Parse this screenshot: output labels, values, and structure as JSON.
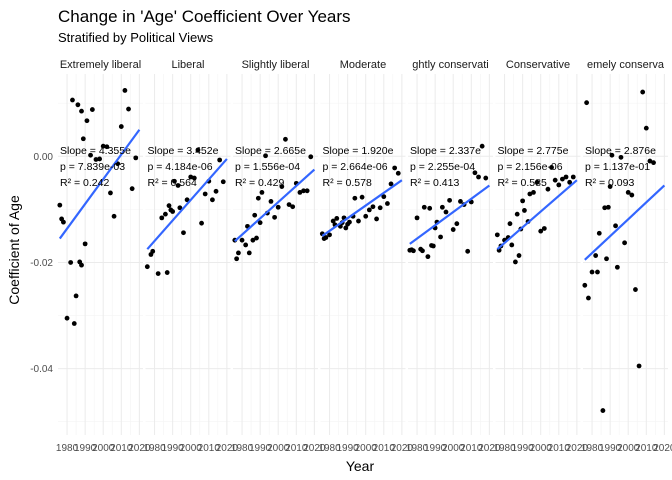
{
  "chart_data": {
    "type": "scatter",
    "title": "Change in 'Age' Coefficient Over Years",
    "subtitle": "Stratified by Political Views",
    "xlabel": "Year",
    "ylabel": "Coefficient of Age",
    "xlim": [
      1975,
      2022
    ],
    "ylim": [
      -0.0525,
      0.0155
    ],
    "x_ticks": [
      1980,
      1990,
      2000,
      2010,
      2020
    ],
    "x_tick_labels": [
      "1980",
      "1990",
      "2000",
      "2010",
      "2020"
    ],
    "y_ticks": [
      0.0,
      -0.02,
      -0.04
    ],
    "y_tick_labels": [
      "0.00",
      "-0.02",
      "-0.04"
    ],
    "grid": true,
    "legend": "none",
    "point_color": "#000000",
    "line_color": "#3366ff",
    "facets": [
      {
        "label": "Extremely liberal",
        "annotation": [
          "Slope = 4.355e",
          "p = 7.839e-03",
          "R² = 0.242"
        ],
        "fit": {
          "x": [
            1976,
            2020
          ],
          "y": [
            -0.0155,
            0.005
          ]
        },
        "points": [
          {
            "x": 1976,
            "y": -0.0092
          },
          {
            "x": 1977,
            "y": -0.0118
          },
          {
            "x": 1978,
            "y": -0.0124
          },
          {
            "x": 1980,
            "y": -0.0305
          },
          {
            "x": 1982,
            "y": -0.02
          },
          {
            "x": 1983,
            "y": 0.0106
          },
          {
            "x": 1984,
            "y": -0.0315
          },
          {
            "x": 1985,
            "y": -0.0263
          },
          {
            "x": 1986,
            "y": 0.0097
          },
          {
            "x": 1987,
            "y": -0.0199
          },
          {
            "x": 1988,
            "y": -0.0205
          },
          {
            "x": 1988,
            "y": 0.0085
          },
          {
            "x": 1989,
            "y": 0.0033
          },
          {
            "x": 1990,
            "y": -0.0165
          },
          {
            "x": 1991,
            "y": 0.0067
          },
          {
            "x": 1993,
            "y": 0.0002
          },
          {
            "x": 1994,
            "y": 0.0088
          },
          {
            "x": 1996,
            "y": -0.0006
          },
          {
            "x": 1998,
            "y": -0.0005
          },
          {
            "x": 2000,
            "y": 0.0019
          },
          {
            "x": 2002,
            "y": 0.0018
          },
          {
            "x": 2004,
            "y": -0.0069
          },
          {
            "x": 2006,
            "y": -0.0113
          },
          {
            "x": 2008,
            "y": -0.0014
          },
          {
            "x": 2010,
            "y": 0.0056
          },
          {
            "x": 2012,
            "y": 0.0124
          },
          {
            "x": 2014,
            "y": 0.0089
          },
          {
            "x": 2016,
            "y": -0.0061
          },
          {
            "x": 2018,
            "y": -0.0003
          }
        ]
      },
      {
        "label": "Liberal",
        "annotation": [
          "Slope = 3.452e",
          "p = 4.184e-06",
          "R² = 0.564"
        ],
        "fit": {
          "x": [
            1976,
            2020
          ],
          "y": [
            -0.0175,
            -0.0005
          ]
        },
        "points": [
          {
            "x": 1976,
            "y": -0.0208
          },
          {
            "x": 1978,
            "y": -0.0185
          },
          {
            "x": 1979,
            "y": -0.0179
          },
          {
            "x": 1982,
            "y": -0.0221
          },
          {
            "x": 1984,
            "y": -0.0116
          },
          {
            "x": 1986,
            "y": -0.0109
          },
          {
            "x": 1987,
            "y": -0.0219
          },
          {
            "x": 1988,
            "y": -0.0093
          },
          {
            "x": 1989,
            "y": -0.0101
          },
          {
            "x": 1990,
            "y": -0.0104
          },
          {
            "x": 1991,
            "y": -0.0047
          },
          {
            "x": 1993,
            "y": -0.0055
          },
          {
            "x": 1994,
            "y": -0.0097
          },
          {
            "x": 1996,
            "y": -0.0144
          },
          {
            "x": 1998,
            "y": -0.0082
          },
          {
            "x": 2000,
            "y": -0.0039
          },
          {
            "x": 2002,
            "y": -0.0041
          },
          {
            "x": 2004,
            "y": 0.0012
          },
          {
            "x": 2006,
            "y": -0.0126
          },
          {
            "x": 2008,
            "y": -0.0071
          },
          {
            "x": 2010,
            "y": -0.0047
          },
          {
            "x": 2012,
            "y": -0.0082
          },
          {
            "x": 2014,
            "y": -0.0066
          },
          {
            "x": 2016,
            "y": -0.0007
          },
          {
            "x": 2018,
            "y": -0.0048
          }
        ]
      },
      {
        "label": "Slightly liberal",
        "annotation": [
          "Slope = 2.665e",
          "p = 1.556e-04",
          "R² = 0.429"
        ],
        "fit": {
          "x": [
            1976,
            2020
          ],
          "y": [
            -0.016,
            -0.0025
          ]
        },
        "points": [
          {
            "x": 1976,
            "y": -0.0158
          },
          {
            "x": 1977,
            "y": -0.0193
          },
          {
            "x": 1978,
            "y": -0.0182
          },
          {
            "x": 1980,
            "y": -0.0158
          },
          {
            "x": 1982,
            "y": -0.0167
          },
          {
            "x": 1983,
            "y": -0.0132
          },
          {
            "x": 1984,
            "y": -0.0182
          },
          {
            "x": 1986,
            "y": -0.0158
          },
          {
            "x": 1987,
            "y": -0.0111
          },
          {
            "x": 1988,
            "y": -0.0154
          },
          {
            "x": 1989,
            "y": -0.0079
          },
          {
            "x": 1990,
            "y": -0.0125
          },
          {
            "x": 1991,
            "y": -0.0068
          },
          {
            "x": 1993,
            "y": 0.0001
          },
          {
            "x": 1994,
            "y": -0.0107
          },
          {
            "x": 1996,
            "y": -0.0085
          },
          {
            "x": 1998,
            "y": -0.0115
          },
          {
            "x": 2000,
            "y": -0.0096
          },
          {
            "x": 2002,
            "y": -0.0057
          },
          {
            "x": 2004,
            "y": 0.0032
          },
          {
            "x": 2006,
            "y": -0.0091
          },
          {
            "x": 2008,
            "y": -0.0095
          },
          {
            "x": 2010,
            "y": -0.0051
          },
          {
            "x": 2012,
            "y": -0.0068
          },
          {
            "x": 2014,
            "y": -0.0065
          },
          {
            "x": 2016,
            "y": -0.0065
          },
          {
            "x": 2018,
            "y": -0.0001
          }
        ]
      },
      {
        "label": "Moderate",
        "annotation": [
          "Slope = 1.920e",
          "p = 2.664e-06",
          "R² = 0.578"
        ],
        "fit": {
          "x": [
            1976,
            2020
          ],
          "y": [
            -0.015,
            -0.0045
          ]
        },
        "points": [
          {
            "x": 1976,
            "y": -0.0146
          },
          {
            "x": 1977,
            "y": -0.0155
          },
          {
            "x": 1978,
            "y": -0.0153
          },
          {
            "x": 1980,
            "y": -0.0148
          },
          {
            "x": 1982,
            "y": -0.0122
          },
          {
            "x": 1983,
            "y": -0.0129
          },
          {
            "x": 1984,
            "y": -0.0117
          },
          {
            "x": 1986,
            "y": -0.0132
          },
          {
            "x": 1987,
            "y": -0.0125
          },
          {
            "x": 1988,
            "y": -0.0116
          },
          {
            "x": 1989,
            "y": -0.0135
          },
          {
            "x": 1990,
            "y": -0.0128
          },
          {
            "x": 1991,
            "y": -0.0124
          },
          {
            "x": 1993,
            "y": -0.0113
          },
          {
            "x": 1994,
            "y": -0.0079
          },
          {
            "x": 1996,
            "y": -0.0122
          },
          {
            "x": 1998,
            "y": -0.0077
          },
          {
            "x": 2000,
            "y": -0.0113
          },
          {
            "x": 2002,
            "y": -0.0101
          },
          {
            "x": 2004,
            "y": -0.0095
          },
          {
            "x": 2006,
            "y": -0.0118
          },
          {
            "x": 2008,
            "y": -0.0097
          },
          {
            "x": 2010,
            "y": -0.0076
          },
          {
            "x": 2012,
            "y": -0.0089
          },
          {
            "x": 2014,
            "y": -0.0052
          },
          {
            "x": 2016,
            "y": -0.0022
          },
          {
            "x": 2018,
            "y": -0.0032
          }
        ]
      },
      {
        "label": "Slightly conservative",
        "display_label": "ghtly conservati",
        "annotation": [
          "Slope = 2.337e",
          "p = 2.255e-04",
          "R² = 0.413"
        ],
        "fit": {
          "x": [
            1976,
            2020
          ],
          "y": [
            -0.0165,
            -0.0055
          ]
        },
        "points": [
          {
            "x": 1976,
            "y": -0.0177
          },
          {
            "x": 1977,
            "y": -0.0176
          },
          {
            "x": 1978,
            "y": -0.0178
          },
          {
            "x": 1980,
            "y": -0.0116
          },
          {
            "x": 1982,
            "y": -0.0175
          },
          {
            "x": 1983,
            "y": -0.0178
          },
          {
            "x": 1984,
            "y": -0.0096
          },
          {
            "x": 1986,
            "y": -0.0189
          },
          {
            "x": 1987,
            "y": -0.0098
          },
          {
            "x": 1988,
            "y": -0.0168
          },
          {
            "x": 1989,
            "y": -0.0169
          },
          {
            "x": 1990,
            "y": -0.0135
          },
          {
            "x": 1991,
            "y": -0.0124
          },
          {
            "x": 1993,
            "y": -0.0152
          },
          {
            "x": 1994,
            "y": -0.0096
          },
          {
            "x": 1996,
            "y": -0.0105
          },
          {
            "x": 1998,
            "y": -0.0083
          },
          {
            "x": 2000,
            "y": -0.0138
          },
          {
            "x": 2002,
            "y": -0.0127
          },
          {
            "x": 2004,
            "y": -0.0085
          },
          {
            "x": 2006,
            "y": -0.0091
          },
          {
            "x": 2008,
            "y": -0.0179
          },
          {
            "x": 2010,
            "y": -0.0086
          },
          {
            "x": 2012,
            "y": -0.0031
          },
          {
            "x": 2014,
            "y": -0.0039
          },
          {
            "x": 2016,
            "y": 0.0019
          },
          {
            "x": 2018,
            "y": -0.0041
          }
        ]
      },
      {
        "label": "Conservative",
        "annotation": [
          "Slope = 2.775e",
          "p = 2.156e-06",
          "R² = 0.585"
        ],
        "fit": {
          "x": [
            1976,
            2020
          ],
          "y": [
            -0.0175,
            -0.0045
          ]
        },
        "points": [
          {
            "x": 1976,
            "y": -0.0148
          },
          {
            "x": 1977,
            "y": -0.0177
          },
          {
            "x": 1978,
            "y": -0.0169
          },
          {
            "x": 1980,
            "y": -0.0158
          },
          {
            "x": 1982,
            "y": -0.0153
          },
          {
            "x": 1983,
            "y": -0.0127
          },
          {
            "x": 1984,
            "y": -0.0167
          },
          {
            "x": 1986,
            "y": -0.0199
          },
          {
            "x": 1987,
            "y": -0.0109
          },
          {
            "x": 1988,
            "y": -0.0187
          },
          {
            "x": 1989,
            "y": -0.0137
          },
          {
            "x": 1990,
            "y": -0.0084
          },
          {
            "x": 1991,
            "y": -0.0102
          },
          {
            "x": 1993,
            "y": -0.0123
          },
          {
            "x": 1994,
            "y": -0.0071
          },
          {
            "x": 1996,
            "y": -0.0068
          },
          {
            "x": 1998,
            "y": -0.0049
          },
          {
            "x": 2000,
            "y": -0.0141
          },
          {
            "x": 2002,
            "y": -0.0136
          },
          {
            "x": 2004,
            "y": -0.0062
          },
          {
            "x": 2006,
            "y": -0.0021
          },
          {
            "x": 2008,
            "y": -0.0045
          },
          {
            "x": 2010,
            "y": -0.0054
          },
          {
            "x": 2012,
            "y": -0.0043
          },
          {
            "x": 2014,
            "y": -0.0039
          },
          {
            "x": 2016,
            "y": -0.0049
          },
          {
            "x": 2018,
            "y": -0.0039
          }
        ]
      },
      {
        "label": "Extremely conservative",
        "display_label": "emely conserva",
        "annotation": [
          "Slope = 2.876e",
          "p = 1.137e-01",
          "R² = 0.093"
        ],
        "fit": {
          "x": [
            1976,
            2020
          ],
          "y": [
            -0.0195,
            -0.0055
          ]
        },
        "points": [
          {
            "x": 1976,
            "y": -0.0243
          },
          {
            "x": 1977,
            "y": 0.0101
          },
          {
            "x": 1978,
            "y": -0.0267
          },
          {
            "x": 1980,
            "y": -0.0218
          },
          {
            "x": 1982,
            "y": -0.0187
          },
          {
            "x": 1983,
            "y": -0.0218
          },
          {
            "x": 1984,
            "y": -0.0145
          },
          {
            "x": 1986,
            "y": -0.0479
          },
          {
            "x": 1987,
            "y": -0.0097
          },
          {
            "x": 1988,
            "y": -0.0193
          },
          {
            "x": 1989,
            "y": -0.0096
          },
          {
            "x": 1990,
            "y": -0.0057
          },
          {
            "x": 1991,
            "y": 0.0002
          },
          {
            "x": 1993,
            "y": -0.0131
          },
          {
            "x": 1994,
            "y": -0.0209
          },
          {
            "x": 1996,
            "y": -0.0002
          },
          {
            "x": 1998,
            "y": -0.0163
          },
          {
            "x": 2000,
            "y": -0.0068
          },
          {
            "x": 2002,
            "y": -0.0073
          },
          {
            "x": 2004,
            "y": -0.0251
          },
          {
            "x": 2006,
            "y": -0.0395
          },
          {
            "x": 2008,
            "y": 0.0121
          },
          {
            "x": 2010,
            "y": 0.0053
          },
          {
            "x": 2012,
            "y": -0.0009
          },
          {
            "x": 2014,
            "y": -0.0012
          }
        ]
      }
    ]
  }
}
